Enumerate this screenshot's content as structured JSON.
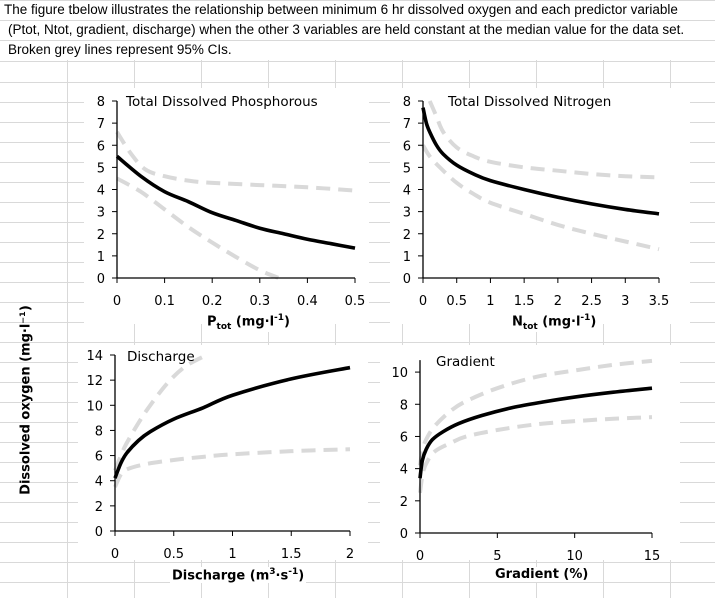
{
  "sheet": {
    "note_lines": [
      "The figure tbelow illustrates the relationship between minimum 6 hr dissolved oxygen and each predictor variable",
      "(Ptot, Ntot, gradient, discharge) when the other 3 variables are held constant at the median value for the data set.",
      "Broken grey lines represent 95% CIs."
    ]
  },
  "shared_ylabel": "Dissolved oxygen (mg·l⁻¹)",
  "colors": {
    "fit": "#000000",
    "ci": "#d9d9d9",
    "grid": "#d9d9d9",
    "axis": "#000000"
  },
  "xlabels": {
    "p": {
      "main": "P",
      "sub": "tot",
      "unit": " (mg·l",
      "sup": "-1",
      "close": ")"
    },
    "n": {
      "main": "N",
      "sub": "tot",
      "unit": " (mg·l",
      "sup": "-1",
      "close": ")"
    },
    "d": {
      "main": "Discharge (m",
      "sup1": "3",
      "mid": "·s",
      "sup2": "-1",
      "close": ")"
    },
    "g": {
      "main": "Gradient  (%)"
    }
  },
  "chart_data": [
    {
      "id": "phosphorus",
      "type": "line",
      "title": "Total Dissolved Phosphorous",
      "xlabel": "Ptot (mg·l-1)",
      "ylabel": "Dissolved oxygen (mg·l-1)",
      "xlim": [
        0,
        0.5
      ],
      "ylim": [
        0,
        8
      ],
      "xticks": [
        0,
        0.1,
        0.2,
        0.3,
        0.4,
        0.5
      ],
      "xtick_labels": [
        "0",
        "0.1",
        "0.2",
        "0.3",
        "0.4",
        "0.5"
      ],
      "yticks": [
        0,
        1,
        2,
        3,
        4,
        5,
        6,
        7,
        8
      ],
      "ytick_labels": [
        "0",
        "1",
        "2",
        "3",
        "4",
        "5",
        "6",
        "7",
        "8"
      ],
      "series": [
        {
          "name": "fit",
          "style": "solid",
          "x": [
            0,
            0.05,
            0.1,
            0.15,
            0.2,
            0.25,
            0.3,
            0.35,
            0.4,
            0.45,
            0.5
          ],
          "y": [
            5.5,
            4.6,
            3.9,
            3.45,
            2.95,
            2.6,
            2.25,
            2.0,
            1.75,
            1.55,
            1.35
          ]
        },
        {
          "name": "upper 95% CI",
          "style": "dashed",
          "x": [
            0,
            0.03,
            0.06,
            0.1,
            0.15,
            0.2,
            0.3,
            0.4,
            0.5
          ],
          "y": [
            6.6,
            5.6,
            4.9,
            4.6,
            4.4,
            4.3,
            4.2,
            4.1,
            3.95
          ]
        },
        {
          "name": "lower 95% CI",
          "style": "dashed",
          "x": [
            0,
            0.05,
            0.1,
            0.15,
            0.2,
            0.25,
            0.3,
            0.34
          ],
          "y": [
            4.5,
            3.9,
            3.1,
            2.3,
            1.6,
            0.95,
            0.35,
            0.0
          ]
        }
      ]
    },
    {
      "id": "nitrogen",
      "type": "line",
      "title": "Total Dissolved Nitrogen",
      "xlabel": "Ntot (mg·l-1)",
      "ylabel": "Dissolved oxygen (mg·l-1)",
      "xlim": [
        0,
        3.5
      ],
      "ylim": [
        0,
        8
      ],
      "xticks": [
        0,
        0.5,
        1,
        1.5,
        2,
        2.5,
        3,
        3.5
      ],
      "xtick_labels": [
        "0",
        "0.5",
        "1",
        "1.5",
        "2",
        "2.5",
        "3",
        "3.5"
      ],
      "yticks": [
        0,
        1,
        2,
        3,
        4,
        5,
        6,
        7,
        8
      ],
      "ytick_labels": [
        "0",
        "1",
        "2",
        "3",
        "4",
        "5",
        "6",
        "7",
        "8"
      ],
      "series": [
        {
          "name": "fit",
          "style": "solid",
          "x": [
            0,
            0.05,
            0.1,
            0.2,
            0.3,
            0.5,
            0.75,
            1,
            1.5,
            2,
            2.5,
            3,
            3.5
          ],
          "y": [
            7.7,
            7.0,
            6.6,
            6.0,
            5.6,
            5.1,
            4.7,
            4.4,
            4.0,
            3.65,
            3.35,
            3.1,
            2.9
          ]
        },
        {
          "name": "upper 95% CI",
          "style": "dashed",
          "x": [
            0.1,
            0.2,
            0.3,
            0.5,
            0.75,
            1,
            1.5,
            2,
            2.5,
            3,
            3.5
          ],
          "y": [
            8.0,
            7.3,
            6.6,
            5.9,
            5.5,
            5.25,
            5.0,
            4.85,
            4.7,
            4.6,
            4.55
          ]
        },
        {
          "name": "lower 95% CI",
          "style": "dashed",
          "x": [
            0,
            0.1,
            0.25,
            0.5,
            0.75,
            1,
            1.5,
            2,
            2.5,
            3,
            3.5
          ],
          "y": [
            6.0,
            5.5,
            5.0,
            4.3,
            3.8,
            3.4,
            2.9,
            2.4,
            2.0,
            1.65,
            1.3
          ]
        }
      ]
    },
    {
      "id": "discharge",
      "type": "line",
      "title": "Discharge",
      "xlabel": "Discharge (m3·s-1)",
      "ylabel": "Dissolved oxygen (mg·l-1)",
      "xlim": [
        0,
        2
      ],
      "ylim": [
        0,
        14
      ],
      "xticks": [
        0,
        0.5,
        1,
        1.5,
        2
      ],
      "xtick_labels": [
        "0",
        "0.5",
        "1",
        "1.5",
        "2"
      ],
      "yticks": [
        0,
        2,
        4,
        6,
        8,
        10,
        12,
        14
      ],
      "ytick_labels": [
        "0",
        "2",
        "4",
        "6",
        "8",
        "10",
        "12",
        "14"
      ],
      "series": [
        {
          "name": "fit",
          "style": "solid",
          "x": [
            0,
            0.05,
            0.1,
            0.2,
            0.3,
            0.5,
            0.75,
            1,
            1.5,
            2
          ],
          "y": [
            4.2,
            5.4,
            6.2,
            7.2,
            7.9,
            8.9,
            9.8,
            10.8,
            12.1,
            13.0
          ]
        },
        {
          "name": "upper 95% CI",
          "style": "dashed",
          "x": [
            0,
            0.05,
            0.1,
            0.2,
            0.3,
            0.45,
            0.6,
            0.78
          ],
          "y": [
            4.8,
            6.0,
            7.0,
            8.6,
            10.0,
            11.8,
            13.1,
            14.0
          ]
        },
        {
          "name": "lower 95% CI",
          "style": "dashed",
          "x": [
            0,
            0.05,
            0.1,
            0.25,
            0.5,
            0.75,
            1,
            1.5,
            2
          ],
          "y": [
            3.5,
            4.5,
            4.9,
            5.3,
            5.65,
            5.9,
            6.1,
            6.35,
            6.5
          ]
        }
      ]
    },
    {
      "id": "gradient",
      "type": "line",
      "title": "Gradient",
      "xlabel": "Gradient (%)",
      "ylabel": "Dissolved oxygen (mg·l-1)",
      "xlim": [
        0,
        15
      ],
      "ylim": [
        0,
        11
      ],
      "xticks": [
        0,
        5,
        10,
        15
      ],
      "xtick_labels": [
        "0",
        "5",
        "10",
        "15"
      ],
      "yticks": [
        0,
        2,
        4,
        6,
        8,
        10
      ],
      "ytick_labels": [
        "0",
        "2",
        "4",
        "6",
        "8",
        "10"
      ],
      "series": [
        {
          "name": "fit",
          "style": "solid",
          "x": [
            0,
            0.15,
            0.4,
            0.8,
            1.5,
            2.5,
            4,
            6,
            8,
            10,
            12.5,
            15
          ],
          "y": [
            3.4,
            4.5,
            5.2,
            5.8,
            6.3,
            6.8,
            7.3,
            7.8,
            8.15,
            8.45,
            8.75,
            9.0
          ]
        },
        {
          "name": "upper 95% CI",
          "style": "dashed",
          "x": [
            0,
            0.2,
            0.5,
            1,
            2,
            3,
            5,
            7.5,
            10,
            12.5,
            15
          ],
          "y": [
            4.2,
            5.3,
            6.0,
            6.7,
            7.6,
            8.2,
            9.0,
            9.7,
            10.1,
            10.45,
            10.7
          ]
        },
        {
          "name": "lower 95% CI",
          "style": "dashed",
          "x": [
            0,
            0.2,
            0.5,
            1,
            2,
            3,
            5,
            7.5,
            10,
            12.5,
            15
          ],
          "y": [
            2.5,
            3.8,
            4.5,
            5.1,
            5.6,
            6.0,
            6.4,
            6.75,
            6.95,
            7.1,
            7.2
          ]
        }
      ]
    }
  ]
}
